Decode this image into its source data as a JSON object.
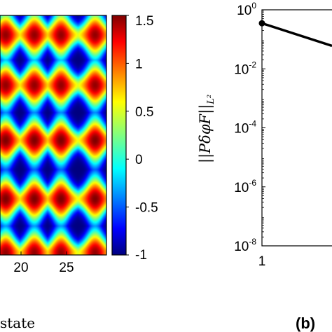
{
  "chart_data": [
    {
      "type": "heatmap",
      "x_ticks": [
        "20",
        "25"
      ],
      "colorbar": {
        "colormap": "jet",
        "range": [
          -1,
          1.5
        ],
        "ticks": [
          "1.5",
          "1",
          "0.5",
          "0",
          "-0.5",
          "-1"
        ],
        "tick_values": [
          1.5,
          1,
          0.5,
          0,
          -0.5,
          -1
        ]
      },
      "xlabel": "state",
      "pattern": {
        "row_centers": [
          0.08,
          0.29,
          0.52,
          0.765,
          0.99
        ],
        "row_peak_values": [
          1.45,
          1.45,
          1.5,
          1.5,
          1.45
        ],
        "column_centers": [
          0.05,
          0.32,
          0.57,
          0.89
        ],
        "background_value": -1
      }
    },
    {
      "type": "line",
      "ylabel": "||PδφF||",
      "ylabel_sub": "L²",
      "yscale": "log",
      "ylim": [
        1e-08,
        1
      ],
      "y_ticks": [
        {
          "base": "10",
          "exp": "0",
          "value": 1
        },
        {
          "base": "10",
          "exp": "-2",
          "value": 0.01
        },
        {
          "base": "10",
          "exp": "-4",
          "value": 0.0001
        },
        {
          "base": "10",
          "exp": "-6",
          "value": 1e-06
        },
        {
          "base": "10",
          "exp": "-8",
          "value": 1e-08
        }
      ],
      "x_ticks": [
        "1"
      ],
      "x_range_visible": [
        1,
        1.27
      ],
      "series": [
        {
          "x": [
            1,
            1.27
          ],
          "y": [
            0.35,
            0.06
          ],
          "color": "#000000"
        }
      ],
      "panel_label": "(b)"
    }
  ]
}
